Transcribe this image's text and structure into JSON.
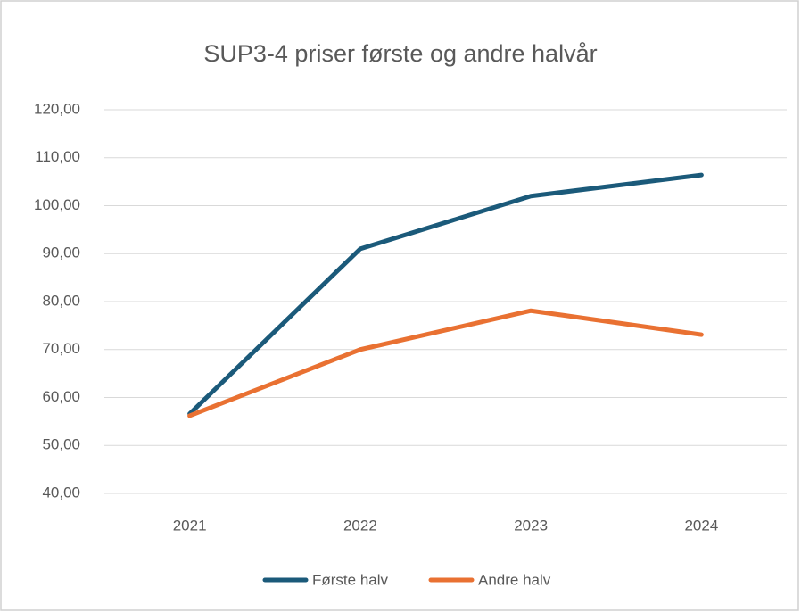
{
  "chart_data": {
    "type": "line",
    "title": "SUP3-4 priser første og andre halvår",
    "categories": [
      "2021",
      "2022",
      "2023",
      "2024"
    ],
    "series": [
      {
        "name": "Første halv",
        "color": "#1b5a7a",
        "values": [
          56.6,
          91.0,
          102.0,
          106.4
        ]
      },
      {
        "name": "Andre halv",
        "color": "#e97132",
        "values": [
          56.2,
          70.0,
          78.1,
          73.1
        ]
      }
    ],
    "ylim": [
      40,
      120
    ],
    "yticks": [
      {
        "value": 40,
        "label": "40,00"
      },
      {
        "value": 50,
        "label": "50,00"
      },
      {
        "value": 60,
        "label": "60,00"
      },
      {
        "value": 70,
        "label": "70,00"
      },
      {
        "value": 80,
        "label": "80,00"
      },
      {
        "value": 90,
        "label": "90,00"
      },
      {
        "value": 100,
        "label": "100,00"
      },
      {
        "value": 110,
        "label": "110,00"
      },
      {
        "value": 120,
        "label": "120,00"
      }
    ],
    "grid": true,
    "legend": "bottom"
  }
}
